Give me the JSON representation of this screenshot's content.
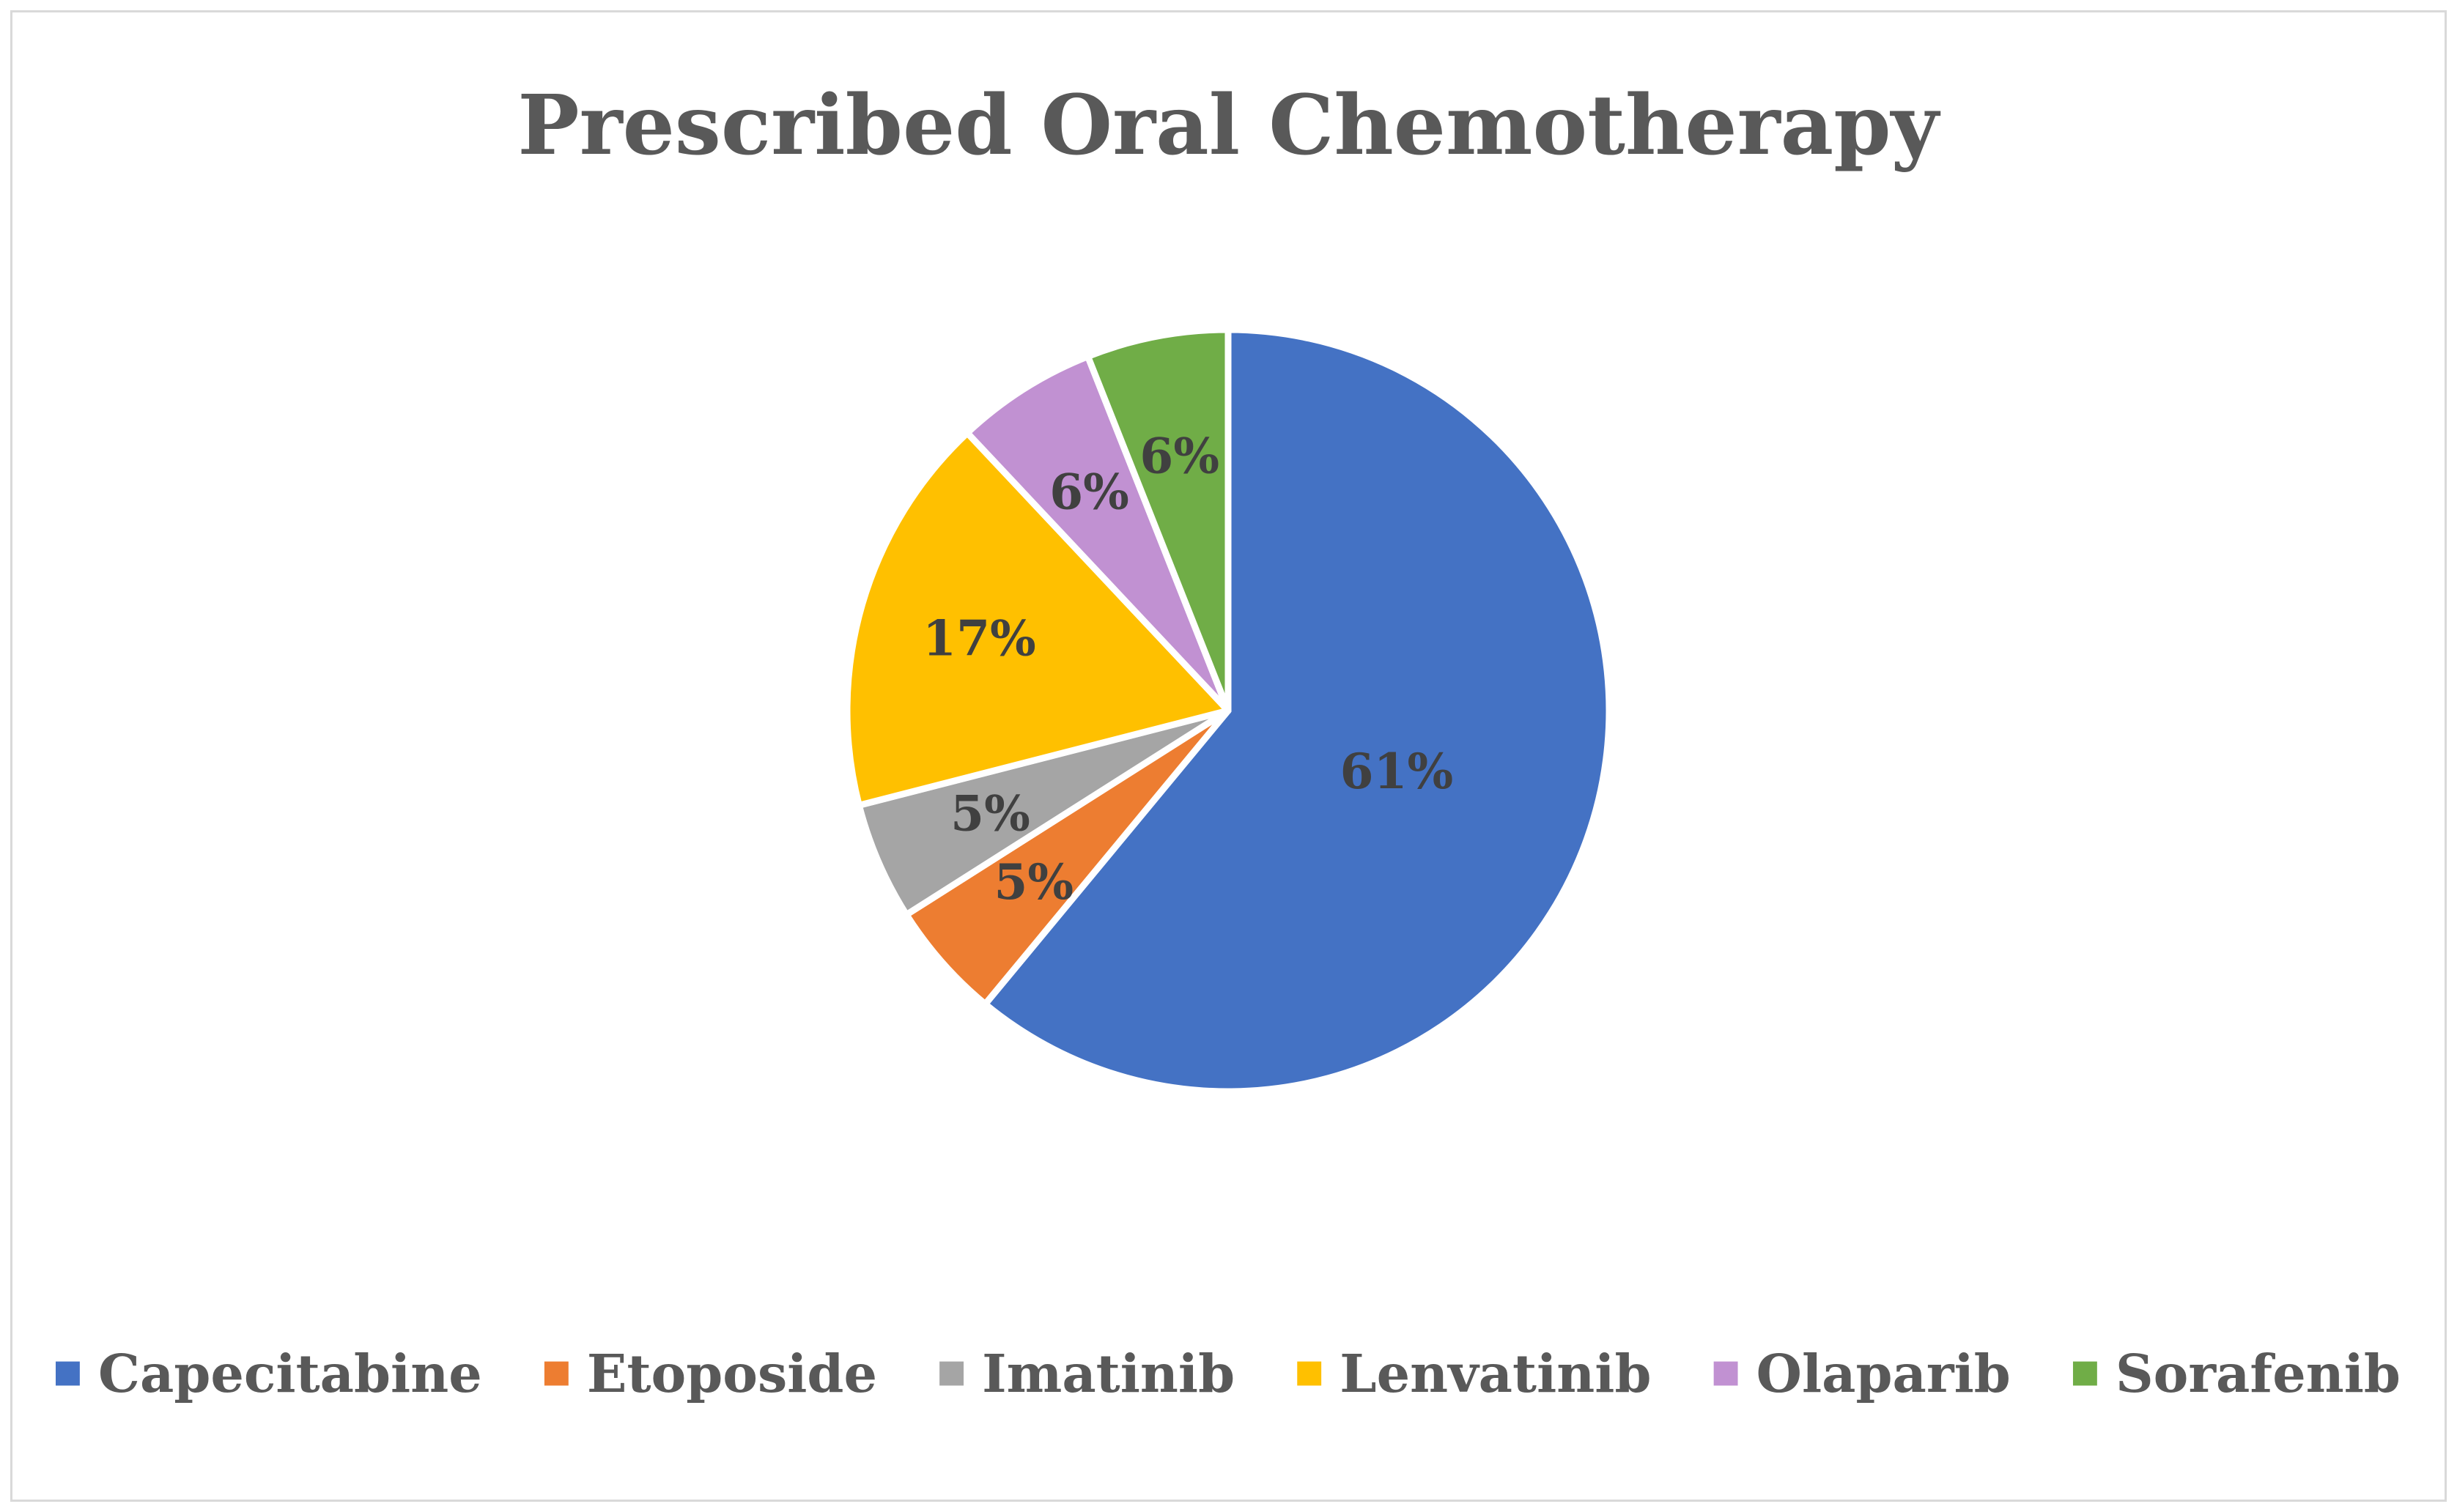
{
  "chart_data": {
    "type": "pie",
    "title": "Prescribed Oral Chemotherapy",
    "categories": [
      "Capecitabine",
      "Etoposide",
      "Imatinib",
      "Lenvatinib",
      "Olaparib",
      "Sorafenib"
    ],
    "values": [
      61,
      5,
      5,
      17,
      6,
      6
    ],
    "data_labels": [
      "61%",
      "5%",
      "5%",
      "17%",
      "6%",
      "6%"
    ],
    "colors": [
      "#4472c4",
      "#ed7d31",
      "#a5a5a5",
      "#ffc000",
      "#c191d2",
      "#70ad47"
    ],
    "legend_position": "bottom",
    "start_angle": "12 o'clock",
    "direction": "clockwise"
  }
}
